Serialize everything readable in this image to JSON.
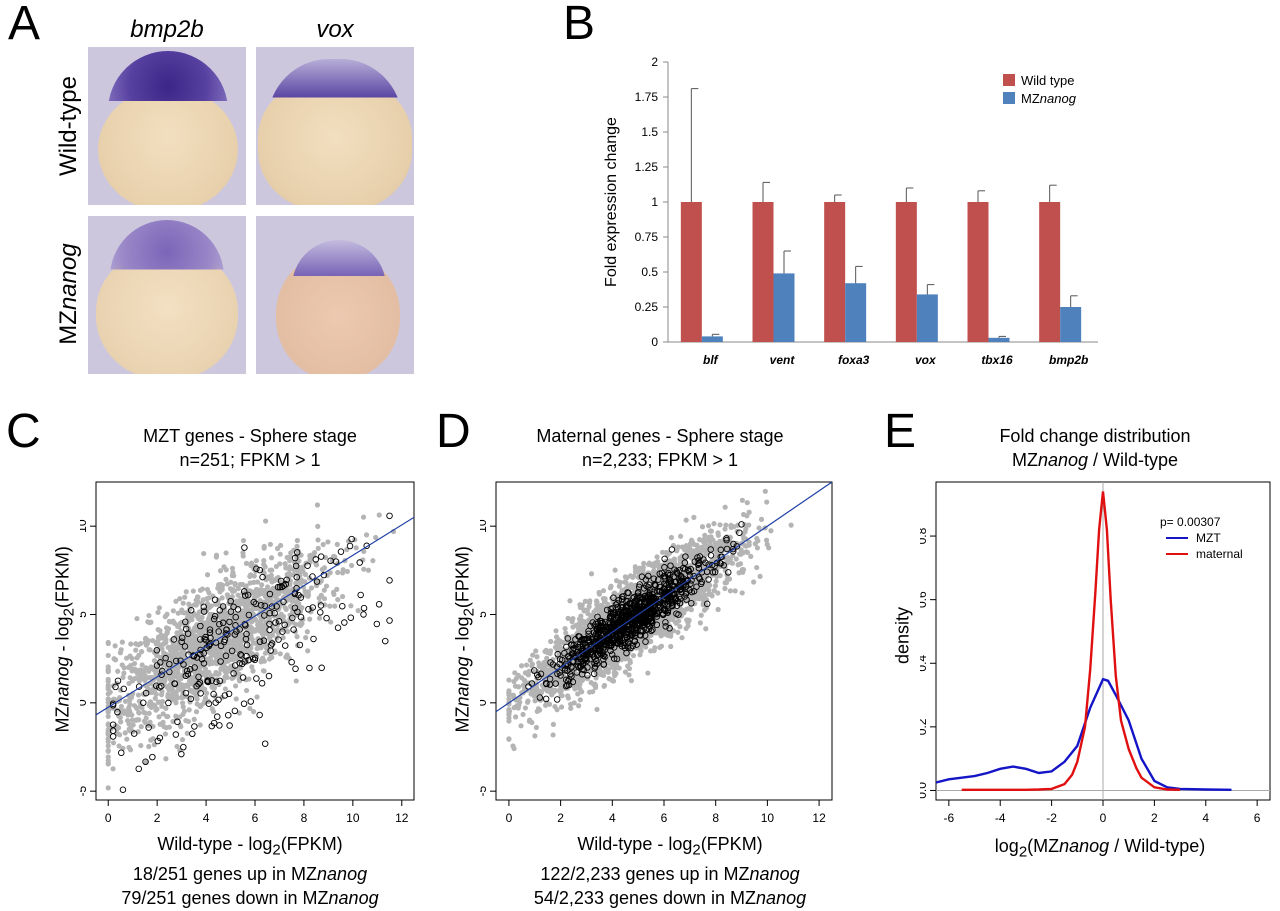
{
  "panels": {
    "A": {
      "letter": "A",
      "columns": [
        "bmp2b",
        "vox"
      ],
      "rows": [
        {
          "label": "Wild-type",
          "italic": ""
        },
        {
          "label": "MZ",
          "italic": "nanog"
        }
      ]
    },
    "B": {
      "letter": "B"
    },
    "C": {
      "letter": "C",
      "title_line1": "MZT genes - Sphere stage",
      "title_line2": "n=251; FPKM > 1",
      "ylabel_pre": "MZ",
      "ylabel_it": "nanog",
      "ylabel_post": " - log",
      "ylabel_sub": "2",
      "ylabel_end": "(FPKM)",
      "xlabel": "Wild-type - log",
      "xlabel_sub": "2",
      "xlabel_end": "(FPKM)",
      "footer_up_pre": "18/251 genes up in MZ",
      "footer_up_it": "nanog",
      "footer_down_pre": "79/251 genes down in MZ",
      "footer_down_it": "nanog"
    },
    "D": {
      "letter": "D",
      "title_line1": "Maternal genes - Sphere stage",
      "title_line2": "n=2,233; FPKM > 1",
      "ylabel_pre": "MZ",
      "ylabel_it": "nanog",
      "ylabel_post": " - log",
      "ylabel_sub": "2",
      "ylabel_end": "(FPKM)",
      "xlabel": "Wild-type - log",
      "xlabel_sub": "2",
      "xlabel_end": "(FPKM)",
      "footer_up_pre": "122/2,233 genes up in MZ",
      "footer_up_it": "nanog",
      "footer_down_pre": "54/2,233 genes down in MZ",
      "footer_down_it": "nanog"
    },
    "E": {
      "letter": "E",
      "title_line1": "Fold change distribution",
      "title_line2_pre": "MZ",
      "title_line2_it": "nanog",
      "title_line2_post": " / Wild-type",
      "ylabel": "density",
      "xlabel_pre": "log",
      "xlabel_sub": "2",
      "xlabel_mid": "(MZ",
      "xlabel_it": "nanog",
      "xlabel_end": " / Wild-type)",
      "pvalue": "p= 0.00307"
    }
  },
  "chart_data": [
    {
      "type": "bar",
      "panel": "B",
      "ylabel": "Fold expression change",
      "ylim": [
        0,
        2
      ],
      "yticks": [
        "0",
        "0.25",
        "0.5",
        "0.75",
        "1",
        "1.25",
        "1.5",
        "1.75",
        "2"
      ],
      "categories": [
        "blf",
        "vent",
        "foxa3",
        "vox",
        "tbx16",
        "bmp2b"
      ],
      "legend_position": "top-right",
      "series": [
        {
          "name": "Wild type",
          "name_it": "",
          "color": "#c0504d",
          "values": [
            1,
            1,
            1,
            1,
            1,
            1
          ],
          "errors": [
            0.81,
            0.14,
            0.05,
            0.1,
            0.08,
            0.12
          ]
        },
        {
          "name": "MZ",
          "name_it": "nanog",
          "color": "#4f81bd",
          "values": [
            0.04,
            0.49,
            0.42,
            0.34,
            0.03,
            0.25
          ],
          "errors": [
            0.015,
            0.16,
            0.12,
            0.07,
            0.01,
            0.08
          ]
        }
      ]
    },
    {
      "type": "scatter",
      "panel": "C",
      "xlim": [
        -0.5,
        12.5
      ],
      "ylim": [
        -5.5,
        12.5
      ],
      "xticks": [
        "0",
        "2",
        "4",
        "6",
        "8",
        "10",
        "12"
      ],
      "yticks": [
        "-5",
        "0",
        "5",
        "10"
      ],
      "background_color": "#b4b4b4",
      "highlight_color": "#000000",
      "fit_line_color": "#1f3fa6",
      "fit_line": {
        "slope": 0.86,
        "intercept": -0.25
      }
    },
    {
      "type": "scatter",
      "panel": "D",
      "xlim": [
        -0.5,
        12.5
      ],
      "ylim": [
        -5.5,
        12.5
      ],
      "xticks": [
        "0",
        "2",
        "4",
        "6",
        "8",
        "10",
        "12"
      ],
      "yticks": [
        "-5",
        "0",
        "5",
        "10"
      ],
      "background_color": "#b4b4b4",
      "highlight_color": "#000000",
      "fit_line_color": "#1f3fa6",
      "fit_line": {
        "slope": 1.0,
        "intercept": 0.0
      }
    },
    {
      "type": "line",
      "panel": "E",
      "xlim": [
        -6.5,
        6.5
      ],
      "ylim": [
        -0.03,
        0.97
      ],
      "xticks": [
        "-6",
        "-4",
        "-2",
        "0",
        "2",
        "4",
        "6"
      ],
      "yticks": [
        "0.0",
        "0.2",
        "0.4",
        "0.6",
        "0.8"
      ],
      "legend_position": "top-right",
      "series": [
        {
          "name": "MZT",
          "color": "#1515c8",
          "x": [
            -6.5,
            -6,
            -5,
            -4.5,
            -4,
            -3.5,
            -3,
            -2.5,
            -2,
            -1.5,
            -1,
            -0.5,
            0,
            0.2,
            0.5,
            1,
            1.5,
            2,
            2.5,
            3,
            4,
            5
          ],
          "y": [
            0.025,
            0.035,
            0.045,
            0.055,
            0.068,
            0.075,
            0.068,
            0.055,
            0.06,
            0.09,
            0.14,
            0.26,
            0.35,
            0.345,
            0.3,
            0.22,
            0.1,
            0.03,
            0.01,
            0.005,
            0.003,
            0.002
          ]
        },
        {
          "name": "maternal",
          "color": "#e01010",
          "x": [
            -5.5,
            -4,
            -3,
            -2.5,
            -2,
            -1.5,
            -1.2,
            -1,
            -0.7,
            -0.5,
            -0.3,
            -0.15,
            0,
            0.15,
            0.3,
            0.5,
            0.7,
            1,
            1.3,
            1.5,
            2,
            2.5,
            3
          ],
          "y": [
            0.002,
            0.002,
            0.002,
            0.003,
            0.005,
            0.02,
            0.05,
            0.09,
            0.2,
            0.38,
            0.62,
            0.82,
            0.94,
            0.82,
            0.6,
            0.36,
            0.22,
            0.13,
            0.07,
            0.04,
            0.01,
            0.003,
            0.002
          ]
        }
      ]
    }
  ]
}
